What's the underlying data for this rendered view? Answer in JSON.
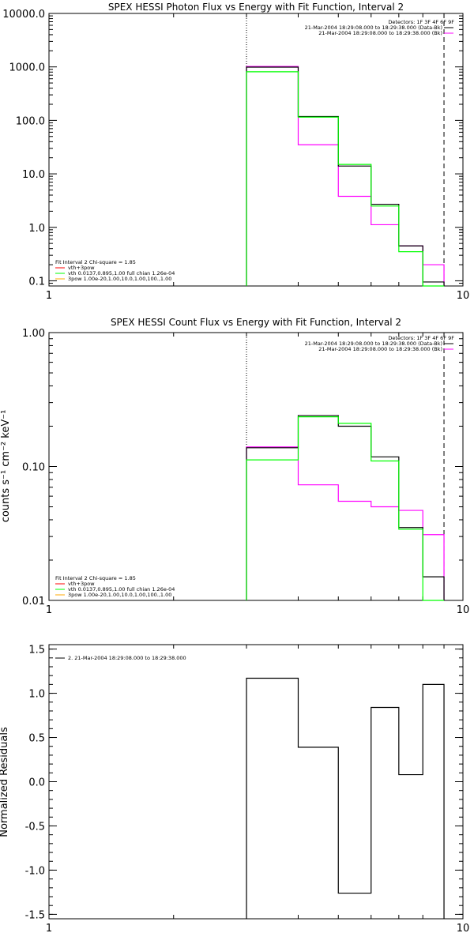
{
  "chart_data": [
    {
      "type": "line",
      "title": "SPEX HESSI Photon Flux vs Energy with Fit Function, Interval 2",
      "xlabel": "",
      "ylabel": "",
      "x_scale": "log",
      "y_scale": "log",
      "xlim": [
        1,
        10
      ],
      "ylim": [
        0.08,
        10000
      ],
      "x_tick_labels": [
        "1",
        "10"
      ],
      "y_tick_labels": [
        "0.1",
        "1.0",
        "10.0",
        "100.0",
        "1000.0",
        "10000.0"
      ],
      "vlines": [
        {
          "x": 3.0,
          "style": "dotted"
        },
        {
          "x": 9.0,
          "style": "dashed"
        }
      ],
      "legend_right": {
        "header": "Detectors: 1F 3F 4F 6F 9F",
        "entries": [
          {
            "text": "21-Mar-2004 18:29:08.000 to 18:29:38.000 (Data-Bk)",
            "color": "#000000"
          },
          {
            "text": "21-Mar-2004 18:29:08.000 to 18:29:38.000 (Bk)",
            "color": "#ff00ff"
          }
        ]
      },
      "legend_left": {
        "header": "Fit Interval 2   Chi-square = 1.85",
        "entries": [
          {
            "text": "vth+3pow",
            "color": "#ff0000"
          },
          {
            "text": "vth 0.0137,0.895,1.00  full chian 1.26e-04",
            "color": "#00ff00"
          },
          {
            "text": "3pow 1.00e-20,1.00,10.0,1.00,100.,1.00",
            "color": "#ffaa00"
          }
        ]
      },
      "bin_edges": [
        3,
        4,
        5,
        6,
        7,
        8,
        9
      ],
      "series": [
        {
          "color": "#ff00ff",
          "values": [
            1020,
            35,
            3.8,
            1.12,
            0.45,
            0.2
          ]
        },
        {
          "color": "#000000",
          "values": [
            990,
            118,
            14,
            2.7,
            0.45,
            0.095
          ]
        },
        {
          "color": "#00ff00",
          "values": [
            810,
            115,
            15,
            2.5,
            0.35,
            0.08
          ]
        }
      ]
    },
    {
      "type": "line",
      "title": "SPEX HESSI Count Flux vs Energy with Fit Function, Interval 2",
      "xlabel": "",
      "ylabel": "counts s⁻¹ cm⁻² keV⁻¹",
      "x_scale": "log",
      "y_scale": "log",
      "xlim": [
        1,
        10
      ],
      "ylim": [
        0.01,
        1.0
      ],
      "x_tick_labels": [
        "1",
        "10"
      ],
      "y_tick_labels": [
        "0.01",
        "0.10",
        "1.00"
      ],
      "vlines": [
        {
          "x": 3.0,
          "style": "dotted"
        },
        {
          "x": 9.0,
          "style": "dashed"
        }
      ],
      "legend_right": {
        "header": "Detectors: 1F 3F 4F 6F 9F",
        "entries": [
          {
            "text": "21-Mar-2004 18:29:08.000 to 18:29:38.000 (Data-Bk)",
            "color": "#000000"
          },
          {
            "text": "21-Mar-2004 18:29:08.000 to 18:29:38.000 (Bk)",
            "color": "#ff00ff"
          }
        ]
      },
      "legend_left": {
        "header": "Fit Interval 2   Chi-square = 1.85",
        "entries": [
          {
            "text": "vth+3pow",
            "color": "#ff0000"
          },
          {
            "text": "vth 0.0137,0.895,1.00  full chian 1.26e-04",
            "color": "#00ff00"
          },
          {
            "text": "3pow 1.00e-20,1.00,10.0,1.00,100.,1.00",
            "color": "#ffaa00"
          }
        ]
      },
      "bin_edges": [
        3,
        4,
        5,
        6,
        7,
        8,
        9
      ],
      "series": [
        {
          "color": "#ff00ff",
          "values": [
            0.14,
            0.073,
            0.055,
            0.05,
            0.047,
            0.031
          ]
        },
        {
          "color": "#000000",
          "values": [
            0.138,
            0.24,
            0.2,
            0.118,
            0.035,
            0.015
          ]
        },
        {
          "color": "#00ff00",
          "values": [
            0.112,
            0.235,
            0.21,
            0.11,
            0.034,
            0.01
          ]
        }
      ]
    },
    {
      "type": "line",
      "title": "",
      "xlabel": "",
      "ylabel": "Normalized Residuals",
      "x_scale": "log",
      "y_scale": "linear",
      "xlim": [
        1,
        10
      ],
      "ylim": [
        -1.55,
        1.55
      ],
      "x_tick_labels": [
        "1",
        "10"
      ],
      "y_tick_labels": [
        "-1.5",
        "-1.0",
        "-0.5",
        "0.0",
        "0.5",
        "1.0",
        "1.5"
      ],
      "y_tick_values": [
        -1.5,
        -1.0,
        -0.5,
        0.0,
        0.5,
        1.0,
        1.5
      ],
      "legend_left": {
        "header": "",
        "entries": [
          {
            "text": "2. 21-Mar-2004 18:29:08.000 to 18:29:38.000",
            "color": "#000000"
          }
        ]
      },
      "bin_edges": [
        3,
        4,
        5,
        6,
        7,
        8,
        9
      ],
      "series": [
        {
          "color": "#000000",
          "values": [
            1.17,
            0.39,
            -1.26,
            0.84,
            0.08,
            1.1
          ]
        }
      ]
    }
  ]
}
